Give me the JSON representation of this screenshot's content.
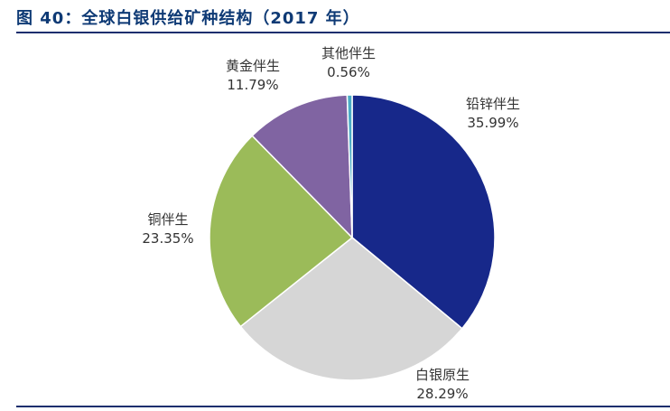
{
  "figure": {
    "title": "图 40：全球白银供给矿种结构（2017 年）"
  },
  "chart_data": {
    "type": "pie",
    "title": "图 40：全球白银供给矿种结构（2017 年）",
    "start_angle_deg": 0,
    "direction": "clockwise",
    "slices": [
      {
        "label": "铅锌伴生",
        "value": 35.99,
        "display": "35.99%",
        "color": "#17288a"
      },
      {
        "label": "白银原生",
        "value": 28.29,
        "display": "28.29%",
        "color": "#d6d6d6"
      },
      {
        "label": "铜伴生",
        "value": 23.35,
        "display": "23.35%",
        "color": "#9bbb59"
      },
      {
        "label": "黄金伴生",
        "value": 11.79,
        "display": "11.79%",
        "color": "#8064a2"
      },
      {
        "label": "其他伴生",
        "value": 0.56,
        "display": "0.56%",
        "color": "#4aacc6"
      }
    ]
  }
}
